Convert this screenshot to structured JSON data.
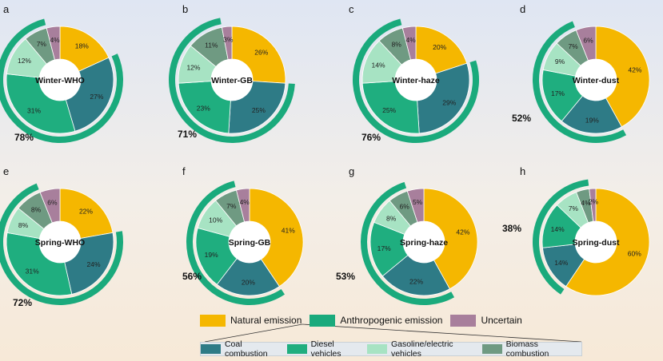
{
  "colors": {
    "natural": "#f5b700",
    "anthropogenic": "#1aaa7c",
    "uncertain": "#a87f9c",
    "coal": "#2e7b86",
    "diesel": "#1fae7f",
    "gasoline": "#a7e3c3",
    "biomass": "#6f9a82"
  },
  "legend": {
    "natural": "Natural emission",
    "anthropogenic": "Anthropogenic emission",
    "uncertain": "Uncertain",
    "coal": "Coal combustion",
    "diesel": "Diesel vehicles",
    "gasoline": "Gasoline/electric vehicles",
    "biomass": "Biomass combustion"
  },
  "chart_data": [
    {
      "type": "pie",
      "panel": "a",
      "title": "Winter-WHO",
      "anthropogenic_total": "78%",
      "slices": [
        {
          "source": "natural",
          "value": 18
        },
        {
          "source": "coal",
          "value": 27
        },
        {
          "source": "diesel",
          "value": 31
        },
        {
          "source": "gasoline",
          "value": 12
        },
        {
          "source": "biomass",
          "value": 7
        },
        {
          "source": "uncertain",
          "value": 4
        }
      ]
    },
    {
      "type": "pie",
      "panel": "b",
      "title": "Winter-GB",
      "anthropogenic_total": "71%",
      "slices": [
        {
          "source": "natural",
          "value": 26
        },
        {
          "source": "coal",
          "value": 25
        },
        {
          "source": "diesel",
          "value": 23
        },
        {
          "source": "gasoline",
          "value": 12
        },
        {
          "source": "biomass",
          "value": 11
        },
        {
          "source": "uncertain",
          "value": 3
        }
      ]
    },
    {
      "type": "pie",
      "panel": "c",
      "title": "Winter-haze",
      "anthropogenic_total": "76%",
      "slices": [
        {
          "source": "natural",
          "value": 20
        },
        {
          "source": "coal",
          "value": 29
        },
        {
          "source": "diesel",
          "value": 25
        },
        {
          "source": "gasoline",
          "value": 14
        },
        {
          "source": "biomass",
          "value": 8
        },
        {
          "source": "uncertain",
          "value": 4
        }
      ]
    },
    {
      "type": "pie",
      "panel": "d",
      "title": "Winter-dust",
      "anthropogenic_total": "52%",
      "slices": [
        {
          "source": "natural",
          "value": 42
        },
        {
          "source": "coal",
          "value": 19
        },
        {
          "source": "diesel",
          "value": 17
        },
        {
          "source": "gasoline",
          "value": 9
        },
        {
          "source": "biomass",
          "value": 7
        },
        {
          "source": "uncertain",
          "value": 6
        }
      ]
    },
    {
      "type": "pie",
      "panel": "e",
      "title": "Spring-WHO",
      "anthropogenic_total": "72%",
      "slices": [
        {
          "source": "natural",
          "value": 22
        },
        {
          "source": "coal",
          "value": 24
        },
        {
          "source": "diesel",
          "value": 31
        },
        {
          "source": "gasoline",
          "value": 8
        },
        {
          "source": "biomass",
          "value": 8
        },
        {
          "source": "uncertain",
          "value": 6
        }
      ]
    },
    {
      "type": "pie",
      "panel": "f",
      "title": "Spring-GB",
      "anthropogenic_total": "56%",
      "slices": [
        {
          "source": "natural",
          "value": 41
        },
        {
          "source": "coal",
          "value": 20
        },
        {
          "source": "diesel",
          "value": 19
        },
        {
          "source": "gasoline",
          "value": 10
        },
        {
          "source": "biomass",
          "value": 7
        },
        {
          "source": "uncertain",
          "value": 4
        }
      ]
    },
    {
      "type": "pie",
      "panel": "g",
      "title": "Spring-haze",
      "anthropogenic_total": "53%",
      "slices": [
        {
          "source": "natural",
          "value": 42
        },
        {
          "source": "coal",
          "value": 22
        },
        {
          "source": "diesel",
          "value": 17
        },
        {
          "source": "gasoline",
          "value": 8
        },
        {
          "source": "biomass",
          "value": 6
        },
        {
          "source": "uncertain",
          "value": 5
        }
      ]
    },
    {
      "type": "pie",
      "panel": "h",
      "title": "Spring-dust",
      "anthropogenic_total": "38%",
      "slices": [
        {
          "source": "natural",
          "value": 60
        },
        {
          "source": "coal",
          "value": 14
        },
        {
          "source": "diesel",
          "value": 14
        },
        {
          "source": "gasoline",
          "value": 7
        },
        {
          "source": "biomass",
          "value": 4
        },
        {
          "source": "uncertain",
          "value": 2
        }
      ]
    }
  ]
}
